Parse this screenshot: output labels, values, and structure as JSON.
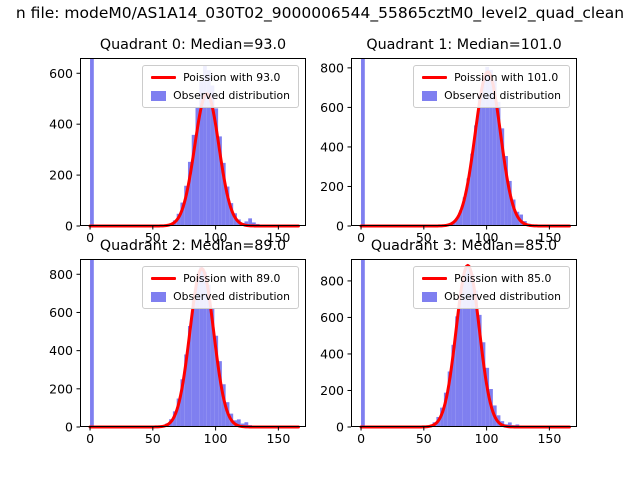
{
  "figure": {
    "title": "n file: modeM0/AS1A14_030T02_9000006544_55865cztM0_level2_quad_clean",
    "background": "#ffffff"
  },
  "colors": {
    "hist": "#7f7ff0",
    "curve": "#ff0000",
    "axis": "#000000"
  },
  "chart_data": [
    {
      "type": "bar",
      "title": "Quadrant 0: Median=93.0",
      "median": 93.0,
      "legend": [
        "Poission with 93.0",
        "Observed distribution"
      ],
      "legend_position": "upper right",
      "xlim": [
        -8,
        172
      ],
      "ylim": [
        0,
        660
      ],
      "xticks": [
        0,
        50,
        100,
        150
      ],
      "yticks": [
        0,
        200,
        400,
        600
      ],
      "xlabel": "",
      "ylabel": "",
      "bin_start": 0,
      "bin_width": 3,
      "counts": [
        660,
        6,
        0,
        0,
        0,
        0,
        0,
        0,
        0,
        0,
        0,
        0,
        0,
        0,
        0,
        0,
        0,
        0,
        0,
        2,
        4,
        10,
        22,
        48,
        92,
        158,
        252,
        358,
        468,
        568,
        630,
        612,
        552,
        462,
        352,
        248,
        155,
        90,
        50,
        26,
        12,
        18,
        30,
        14,
        8,
        4,
        2,
        1,
        2,
        1,
        3,
        1,
        2,
        1,
        2
      ],
      "curve": {
        "center": 93,
        "sigma": 9.6,
        "peak": 520
      }
    },
    {
      "type": "bar",
      "title": "Quadrant 1: Median=101.0",
      "median": 101.0,
      "legend": [
        "Poission with 101.0",
        "Observed distribution"
      ],
      "legend_position": "upper right",
      "xlim": [
        -8,
        172
      ],
      "ylim": [
        0,
        850
      ],
      "xticks": [
        0,
        50,
        100,
        150
      ],
      "yticks": [
        0,
        200,
        400,
        600,
        800
      ],
      "xlabel": "",
      "ylabel": "",
      "bin_start": 0,
      "bin_width": 3,
      "counts": [
        850,
        5,
        0,
        0,
        0,
        0,
        0,
        0,
        0,
        0,
        0,
        0,
        0,
        0,
        0,
        0,
        0,
        0,
        0,
        0,
        0,
        2,
        4,
        8,
        18,
        40,
        79,
        145,
        241,
        366,
        509,
        648,
        753,
        805,
        790,
        738,
        628,
        494,
        354,
        228,
        134,
        72,
        58,
        25,
        12,
        6,
        3,
        2,
        1,
        2,
        1,
        1,
        2,
        1,
        1
      ],
      "curve": {
        "center": 101,
        "sigma": 10.0,
        "peak": 780
      }
    },
    {
      "type": "bar",
      "title": "Quadrant 2: Median=89.0",
      "median": 89.0,
      "legend": [
        "Poission with 89.0",
        "Observed distribution"
      ],
      "legend_position": "upper right",
      "xlim": [
        -8,
        172
      ],
      "ylim": [
        0,
        880
      ],
      "xticks": [
        0,
        50,
        100,
        150
      ],
      "yticks": [
        0,
        200,
        400,
        600,
        800
      ],
      "xlabel": "",
      "ylabel": "",
      "bin_start": 0,
      "bin_width": 3,
      "counts": [
        880,
        5,
        0,
        0,
        0,
        0,
        0,
        0,
        0,
        0,
        0,
        0,
        0,
        0,
        0,
        0,
        0,
        1,
        3,
        8,
        19,
        41,
        82,
        149,
        250,
        380,
        529,
        672,
        781,
        840,
        812,
        745,
        618,
        478,
        345,
        224,
        130,
        70,
        35,
        40,
        18,
        25,
        10,
        5,
        3,
        2,
        1,
        2,
        1,
        1,
        2,
        1,
        1,
        1,
        1
      ],
      "curve": {
        "center": 89,
        "sigma": 9.4,
        "peak": 830
      }
    },
    {
      "type": "bar",
      "title": "Quadrant 3: Median=85.0",
      "median": 85.0,
      "legend": [
        "Poission with 85.0",
        "Observed distribution"
      ],
      "legend_position": "upper right",
      "xlim": [
        -8,
        172
      ],
      "ylim": [
        0,
        920
      ],
      "xticks": [
        0,
        50,
        100,
        150
      ],
      "yticks": [
        0,
        200,
        400,
        600,
        800
      ],
      "xlabel": "",
      "ylabel": "",
      "bin_start": 0,
      "bin_width": 3,
      "counts": [
        920,
        5,
        0,
        0,
        0,
        0,
        0,
        0,
        0,
        0,
        0,
        0,
        0,
        0,
        0,
        0,
        2,
        4,
        11,
        26,
        55,
        106,
        188,
        304,
        450,
        606,
        748,
        843,
        880,
        838,
        748,
        614,
        464,
        324,
        208,
        118,
        64,
        32,
        15,
        25,
        10,
        14,
        6,
        3,
        2,
        1,
        1,
        2,
        1,
        1,
        1,
        2,
        1,
        1,
        1
      ],
      "curve": {
        "center": 85,
        "sigma": 9.2,
        "peak": 885
      }
    }
  ]
}
